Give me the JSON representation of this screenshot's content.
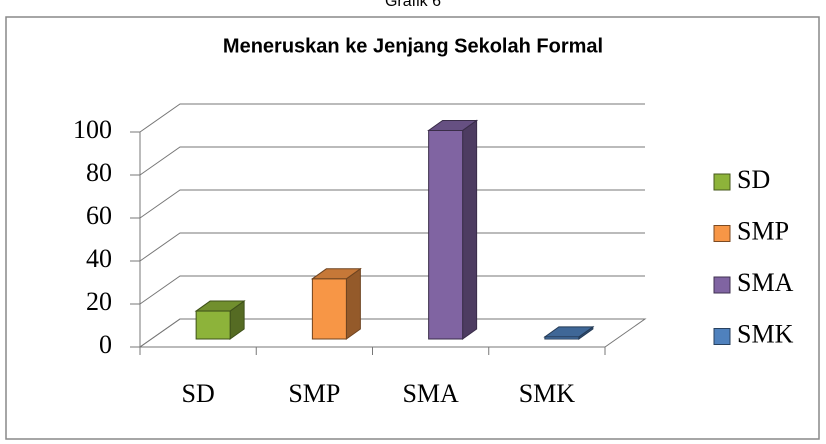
{
  "caption": "Grafik 6",
  "chart_data": {
    "type": "bar",
    "title": "Meneruskan ke Jenjang Sekolah Formal",
    "categories": [
      "SD",
      "SMP",
      "SMA",
      "SMK"
    ],
    "values": [
      13,
      28,
      97,
      1
    ],
    "colors": [
      "#8db33a",
      "#f79646",
      "#8064a2",
      "#4f81bd"
    ],
    "ylim": [
      0,
      100
    ],
    "yticks": [
      0,
      20,
      40,
      60,
      80,
      100
    ],
    "grid": true,
    "legend": "right"
  }
}
